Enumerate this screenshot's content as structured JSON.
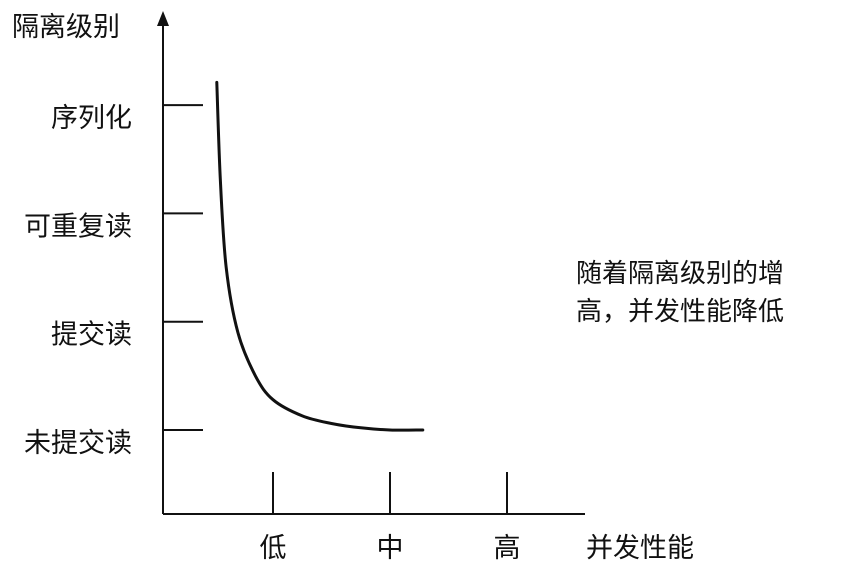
{
  "chart_data": {
    "type": "line",
    "ylabel": "隔离级别",
    "xlabel": "并发性能",
    "y_categories": [
      "未提交读",
      "提交读",
      "可重复读",
      "序列化"
    ],
    "x_categories": [
      "低",
      "中",
      "高"
    ],
    "annotation": [
      "随着隔离级别的增",
      "高，并发性能降低"
    ],
    "series": [
      {
        "values": [
          {
            "x": 0.52,
            "y": 4.21
          },
          {
            "x": 0.55,
            "y": 3.3
          },
          {
            "x": 0.6,
            "y": 2.5
          },
          {
            "x": 0.7,
            "y": 1.9
          },
          {
            "x": 0.85,
            "y": 1.5
          },
          {
            "x": 1.0,
            "y": 1.28
          },
          {
            "x": 1.25,
            "y": 1.13
          },
          {
            "x": 1.5,
            "y": 1.06
          },
          {
            "x": 1.75,
            "y": 1.02
          },
          {
            "x": 2.0,
            "y": 1.0
          },
          {
            "x": 2.28,
            "y": 1.0
          }
        ]
      }
    ],
    "colors": {
      "line": "#111111",
      "axis": "#111111"
    }
  }
}
